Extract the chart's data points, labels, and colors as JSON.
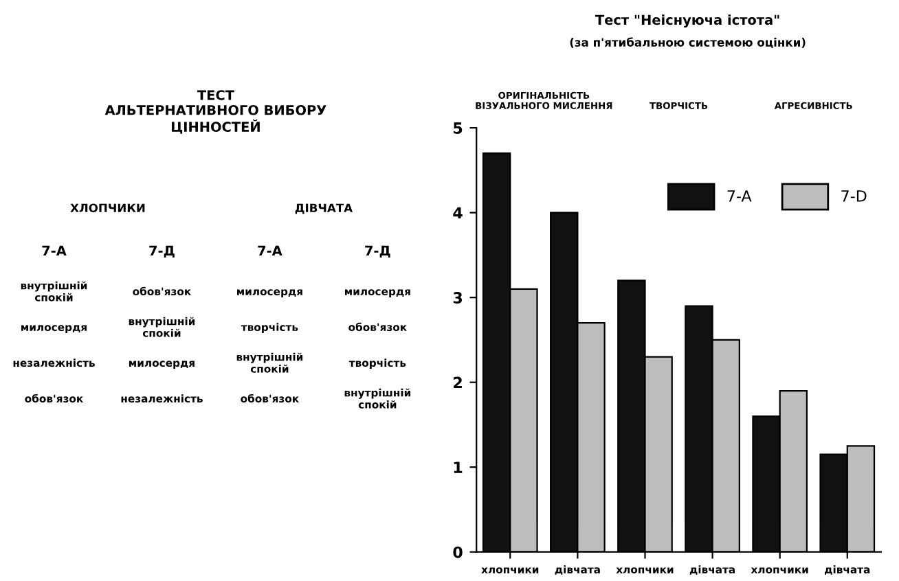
{
  "chart_data": [
    {
      "type": "other",
      "title": "ТЕСТ\nАЛЬТЕРНАТИВНОГО ВИБОРУ\nЦІННОСТЕЙ",
      "categories": [
        "7-А",
        "7-Д",
        "7-А",
        "7-Д"
      ],
      "annotations": [
        "ХЛОПЧИКИ",
        "ДІВЧАТА",
        "внутрішній\nспокій",
        "обов'язок",
        "милосердя",
        "милосердя",
        "милосердя",
        "внутрішній\nспокій",
        "творчість",
        "обов'язок",
        "незалежність",
        "милосердя",
        "внутрішній\nспокій",
        "творчість",
        "обов'язок",
        "незалежність",
        "обов'язок",
        "внутрішній\nспокій"
      ]
    },
    {
      "type": "bar",
      "title": "Тест \"Неіснуюча істота\"",
      "subtitle": "(за п'ятибальною системою оцінки)",
      "annotations": [
        "ОРИГІНАЛЬНІСТЬ\nВІЗУАЛЬНОГО МИСЛЕННЯ",
        "ТВОРЧІСТЬ",
        "АГРЕСИВНІСТЬ"
      ],
      "categories": [
        "хлопчики",
        "дівчата",
        "хлопчики",
        "дівчата",
        "хлопчики",
        "дівчата"
      ],
      "series": [
        {
          "name": "7-A",
          "color": "#111111",
          "values": [
            4.7,
            4.0,
            3.2,
            2.9,
            1.6,
            1.15
          ]
        },
        {
          "name": "7-D",
          "color": "#bdbdbd",
          "values": [
            3.1,
            2.7,
            2.3,
            2.5,
            1.9,
            1.25
          ]
        }
      ],
      "ylim": [
        0,
        5
      ],
      "yticks": [
        0,
        1,
        2,
        3,
        4,
        5
      ],
      "legend": "top right"
    }
  ]
}
